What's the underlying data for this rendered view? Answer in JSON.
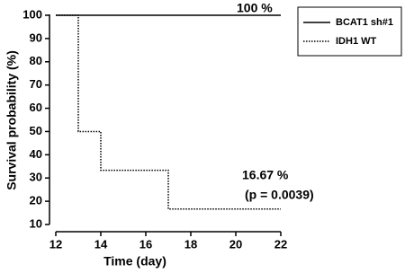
{
  "chart_data": {
    "type": "step",
    "xlabel": "Time (day)",
    "ylabel": "Survival probability (%)",
    "xlim": [
      12,
      22
    ],
    "xticks": [
      12,
      14,
      16,
      18,
      20,
      22
    ],
    "ylim": [
      10,
      100
    ],
    "yticks": [
      10,
      20,
      30,
      40,
      50,
      60,
      70,
      80,
      90,
      100
    ],
    "series": [
      {
        "name": "BCAT1 sh#1",
        "color": "#000000",
        "dash": "solid",
        "x": [
          12,
          22
        ],
        "values": [
          100,
          100
        ]
      },
      {
        "name": "IDH1 WT",
        "color": "#000000",
        "dash": "dotted",
        "x": [
          12,
          13,
          14,
          17,
          22
        ],
        "values": [
          100,
          50,
          33.33,
          16.67,
          16.67
        ]
      }
    ],
    "annotations": [
      "100 %",
      "16.67 %",
      "(p = 0.0039)"
    ],
    "legend": "outside-right"
  }
}
